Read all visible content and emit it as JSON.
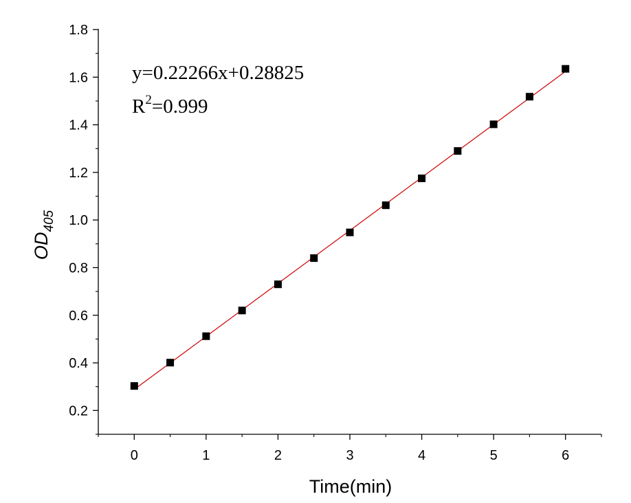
{
  "chart_data": {
    "type": "scatter",
    "xlabel": "Time(min)",
    "ylabel": {
      "main": "OD",
      "subscript": "405"
    },
    "xlim": [
      -0.5,
      6.5
    ],
    "ylim": [
      0.1,
      1.8
    ],
    "x_ticks": [
      0,
      1,
      2,
      3,
      4,
      5,
      6
    ],
    "x_tick_labels": [
      "0",
      "1",
      "2",
      "3",
      "4",
      "5",
      "6"
    ],
    "y_ticks": [
      0.2,
      0.4,
      0.6,
      0.8,
      1.0,
      1.2,
      1.4,
      1.6,
      1.8
    ],
    "y_tick_labels": [
      "0.2",
      "0.4",
      "0.6",
      "0.8",
      "1.0",
      "1.2",
      "1.4",
      "1.6",
      "1.8"
    ],
    "grid": false,
    "legend": false,
    "series": [
      {
        "marker": "square",
        "color": "#000000",
        "x": [
          0,
          0.5,
          1,
          1.5,
          2,
          2.5,
          3,
          3.5,
          4,
          4.5,
          5,
          5.5,
          6
        ],
        "y": [
          0.303,
          0.401,
          0.512,
          0.62,
          0.73,
          0.84,
          0.948,
          1.062,
          1.175,
          1.29,
          1.402,
          1.518,
          1.635
        ]
      }
    ],
    "fit_line": {
      "slope": 0.22266,
      "intercept": 0.28825,
      "x_range": [
        0,
        6
      ],
      "color": "#cc0000"
    },
    "annotations": {
      "equation": "y=0.22266x+0.28825",
      "r2_prefix": "R",
      "r2_superscript": "2",
      "r2_value": "=0.999"
    }
  }
}
